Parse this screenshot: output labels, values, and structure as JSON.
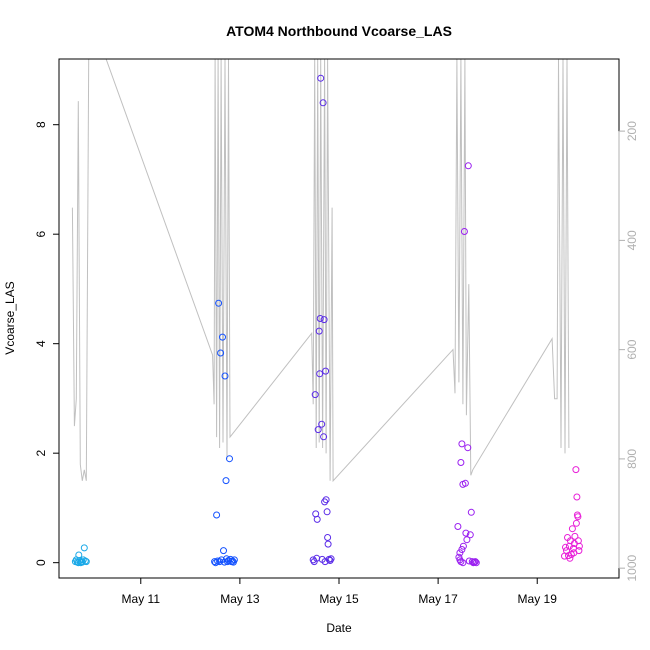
{
  "chart_data": {
    "type": "scatter",
    "title": "ATOM4 Northbound Vcoarse_LAS",
    "xlabel": "Date",
    "ylabel": "Vcoarse_LAS",
    "x_units": "days (May 1 = day 1)",
    "xlim": [
      9.35,
      20.65
    ],
    "ylim": [
      -0.28,
      9.2
    ],
    "x_ticks": [
      {
        "value": 11,
        "label": "May 11"
      },
      {
        "value": 13,
        "label": "May 13"
      },
      {
        "value": 15,
        "label": "May 15"
      },
      {
        "value": 17,
        "label": "May 17"
      },
      {
        "value": 19,
        "label": "May 19"
      }
    ],
    "y_ticks": [
      {
        "value": 0,
        "label": "0"
      },
      {
        "value": 2,
        "label": "2"
      },
      {
        "value": 4,
        "label": "4"
      },
      {
        "value": 6,
        "label": "6"
      },
      {
        "value": 8,
        "label": "8"
      }
    ],
    "y2_axis": {
      "description": "secondary (right) axis, reversed, for grey trace",
      "lim": [
        1018,
        68
      ],
      "ticks": [
        {
          "value": 200,
          "label": "200"
        },
        {
          "value": 400,
          "label": "400"
        },
        {
          "value": 600,
          "label": "600"
        },
        {
          "value": 800,
          "label": "800"
        },
        {
          "value": 1000,
          "label": "1000"
        }
      ],
      "color": "#b0b0b0"
    },
    "colors": {
      "series_1": "#1aa9e8",
      "series_2": "#1452ff",
      "series_3": "#5a2be8",
      "series_4": "#9a1ff0",
      "series_5": "#e81fd8",
      "trace": "#c0c0c0",
      "axis": "#000000"
    },
    "series": [
      {
        "name": "series_1",
        "points": [
          [
            9.68,
            0.02
          ],
          [
            9.7,
            0.05
          ],
          [
            9.72,
            0.01
          ],
          [
            9.74,
            0.0
          ],
          [
            9.75,
            0.14
          ],
          [
            9.77,
            0.04
          ],
          [
            9.79,
            0.0
          ],
          [
            9.8,
            0.02
          ],
          [
            9.82,
            0.01
          ],
          [
            9.84,
            0.05
          ],
          [
            9.86,
            0.27
          ],
          [
            9.88,
            0.03
          ],
          [
            9.9,
            0.02
          ]
        ]
      },
      {
        "name": "series_2",
        "points": [
          [
            12.49,
            0.02
          ],
          [
            12.51,
            0.0
          ],
          [
            12.53,
            0.87
          ],
          [
            12.55,
            0.03
          ],
          [
            12.57,
            4.74
          ],
          [
            12.59,
            0.02
          ],
          [
            12.61,
            3.83
          ],
          [
            12.63,
            0.05
          ],
          [
            12.65,
            4.12
          ],
          [
            12.67,
            0.22
          ],
          [
            12.69,
            0.01
          ],
          [
            12.7,
            3.41
          ],
          [
            12.72,
            1.5
          ],
          [
            12.73,
            0.07
          ],
          [
            12.75,
            0.02
          ],
          [
            12.77,
            0.04
          ],
          [
            12.79,
            1.9
          ],
          [
            12.81,
            0.06
          ],
          [
            12.83,
            0.02
          ],
          [
            12.85,
            0.03
          ],
          [
            12.87,
            0.01
          ],
          [
            12.89,
            0.05
          ]
        ]
      },
      {
        "name": "series_3",
        "points": [
          [
            14.48,
            0.05
          ],
          [
            14.5,
            0.02
          ],
          [
            14.52,
            3.07
          ],
          [
            14.53,
            0.89
          ],
          [
            14.55,
            0.08
          ],
          [
            14.56,
            0.79
          ],
          [
            14.58,
            2.43
          ],
          [
            14.6,
            4.23
          ],
          [
            14.61,
            3.45
          ],
          [
            14.62,
            4.46
          ],
          [
            14.63,
            8.85
          ],
          [
            14.65,
            2.53
          ],
          [
            14.66,
            0.06
          ],
          [
            14.68,
            8.4
          ],
          [
            14.69,
            2.3
          ],
          [
            14.7,
            4.44
          ],
          [
            14.71,
            1.11
          ],
          [
            14.72,
            0.02
          ],
          [
            14.73,
            3.5
          ],
          [
            14.74,
            1.15
          ],
          [
            14.76,
            0.93
          ],
          [
            14.77,
            0.46
          ],
          [
            14.78,
            0.34
          ],
          [
            14.8,
            0.06
          ],
          [
            14.82,
            0.04
          ],
          [
            14.84,
            0.07
          ]
        ]
      },
      {
        "name": "series_4",
        "points": [
          [
            17.4,
            0.66
          ],
          [
            17.42,
            0.1
          ],
          [
            17.44,
            0.05
          ],
          [
            17.46,
            1.83
          ],
          [
            17.48,
            2.17
          ],
          [
            17.5,
            1.43
          ],
          [
            17.51,
            0.3
          ],
          [
            17.53,
            6.05
          ],
          [
            17.55,
            1.45
          ],
          [
            17.56,
            0.54
          ],
          [
            17.58,
            0.42
          ],
          [
            17.6,
            2.1
          ],
          [
            17.61,
            7.25
          ],
          [
            17.63,
            0.03
          ],
          [
            17.65,
            0.51
          ],
          [
            17.67,
            0.92
          ],
          [
            17.69,
            0.02
          ],
          [
            17.71,
            0.0
          ],
          [
            17.73,
            0.01
          ],
          [
            17.75,
            0.02
          ],
          [
            17.77,
            0.0
          ],
          [
            17.44,
            0.18
          ],
          [
            17.46,
            0.02
          ],
          [
            17.48,
            0.24
          ],
          [
            17.5,
            0.0
          ]
        ]
      },
      {
        "name": "series_5",
        "points": [
          [
            19.55,
            0.12
          ],
          [
            19.57,
            0.28
          ],
          [
            19.59,
            0.22
          ],
          [
            19.61,
            0.46
          ],
          [
            19.63,
            0.13
          ],
          [
            19.65,
            0.3
          ],
          [
            19.67,
            0.4
          ],
          [
            19.69,
            0.15
          ],
          [
            19.71,
            0.62
          ],
          [
            19.73,
            0.26
          ],
          [
            19.75,
            0.35
          ],
          [
            19.76,
            0.48
          ],
          [
            19.78,
            1.7
          ],
          [
            19.79,
            0.72
          ],
          [
            19.8,
            1.2
          ],
          [
            19.81,
            0.87
          ],
          [
            19.82,
            0.84
          ],
          [
            19.83,
            0.4
          ],
          [
            19.84,
            0.22
          ],
          [
            19.85,
            0.3
          ],
          [
            19.74,
            0.18
          ],
          [
            19.66,
            0.08
          ]
        ]
      }
    ],
    "trace": {
      "name": "grey trace (right axis)",
      "points": [
        [
          9.62,
          340
        ],
        [
          9.66,
          740
        ],
        [
          9.7,
          690
        ],
        [
          9.74,
          145
        ],
        [
          9.78,
          810
        ],
        [
          9.82,
          840
        ],
        [
          9.86,
          820
        ],
        [
          9.9,
          840
        ],
        [
          9.95,
          68
        ],
        [
          10.3,
          68
        ],
        [
          12.45,
          610
        ],
        [
          12.48,
          700
        ],
        [
          12.5,
          68
        ],
        [
          12.53,
          760
        ],
        [
          12.56,
          68
        ],
        [
          12.59,
          780
        ],
        [
          12.62,
          68
        ],
        [
          12.66,
          770
        ],
        [
          12.7,
          68
        ],
        [
          12.74,
          800
        ],
        [
          12.77,
          68
        ],
        [
          12.8,
          760
        ],
        [
          14.45,
          570
        ],
        [
          14.48,
          700
        ],
        [
          14.51,
          68
        ],
        [
          14.54,
          780
        ],
        [
          14.57,
          68
        ],
        [
          14.6,
          770
        ],
        [
          14.63,
          68
        ],
        [
          14.67,
          780
        ],
        [
          14.71,
          68
        ],
        [
          14.74,
          790
        ],
        [
          14.77,
          68
        ],
        [
          14.82,
          840
        ],
        [
          14.86,
          340
        ],
        [
          14.88,
          840
        ],
        [
          17.3,
          600
        ],
        [
          17.34,
          680
        ],
        [
          17.38,
          68
        ],
        [
          17.42,
          660
        ],
        [
          17.46,
          68
        ],
        [
          17.5,
          700
        ],
        [
          17.54,
          68
        ],
        [
          17.57,
          720
        ],
        [
          17.62,
          480
        ],
        [
          17.66,
          830
        ],
        [
          17.7,
          820
        ],
        [
          19.3,
          580
        ],
        [
          19.35,
          690
        ],
        [
          19.4,
          690
        ],
        [
          19.43,
          68
        ],
        [
          19.48,
          780
        ],
        [
          19.52,
          68
        ],
        [
          19.56,
          790
        ],
        [
          19.6,
          68
        ],
        [
          19.64,
          780
        ]
      ]
    }
  }
}
